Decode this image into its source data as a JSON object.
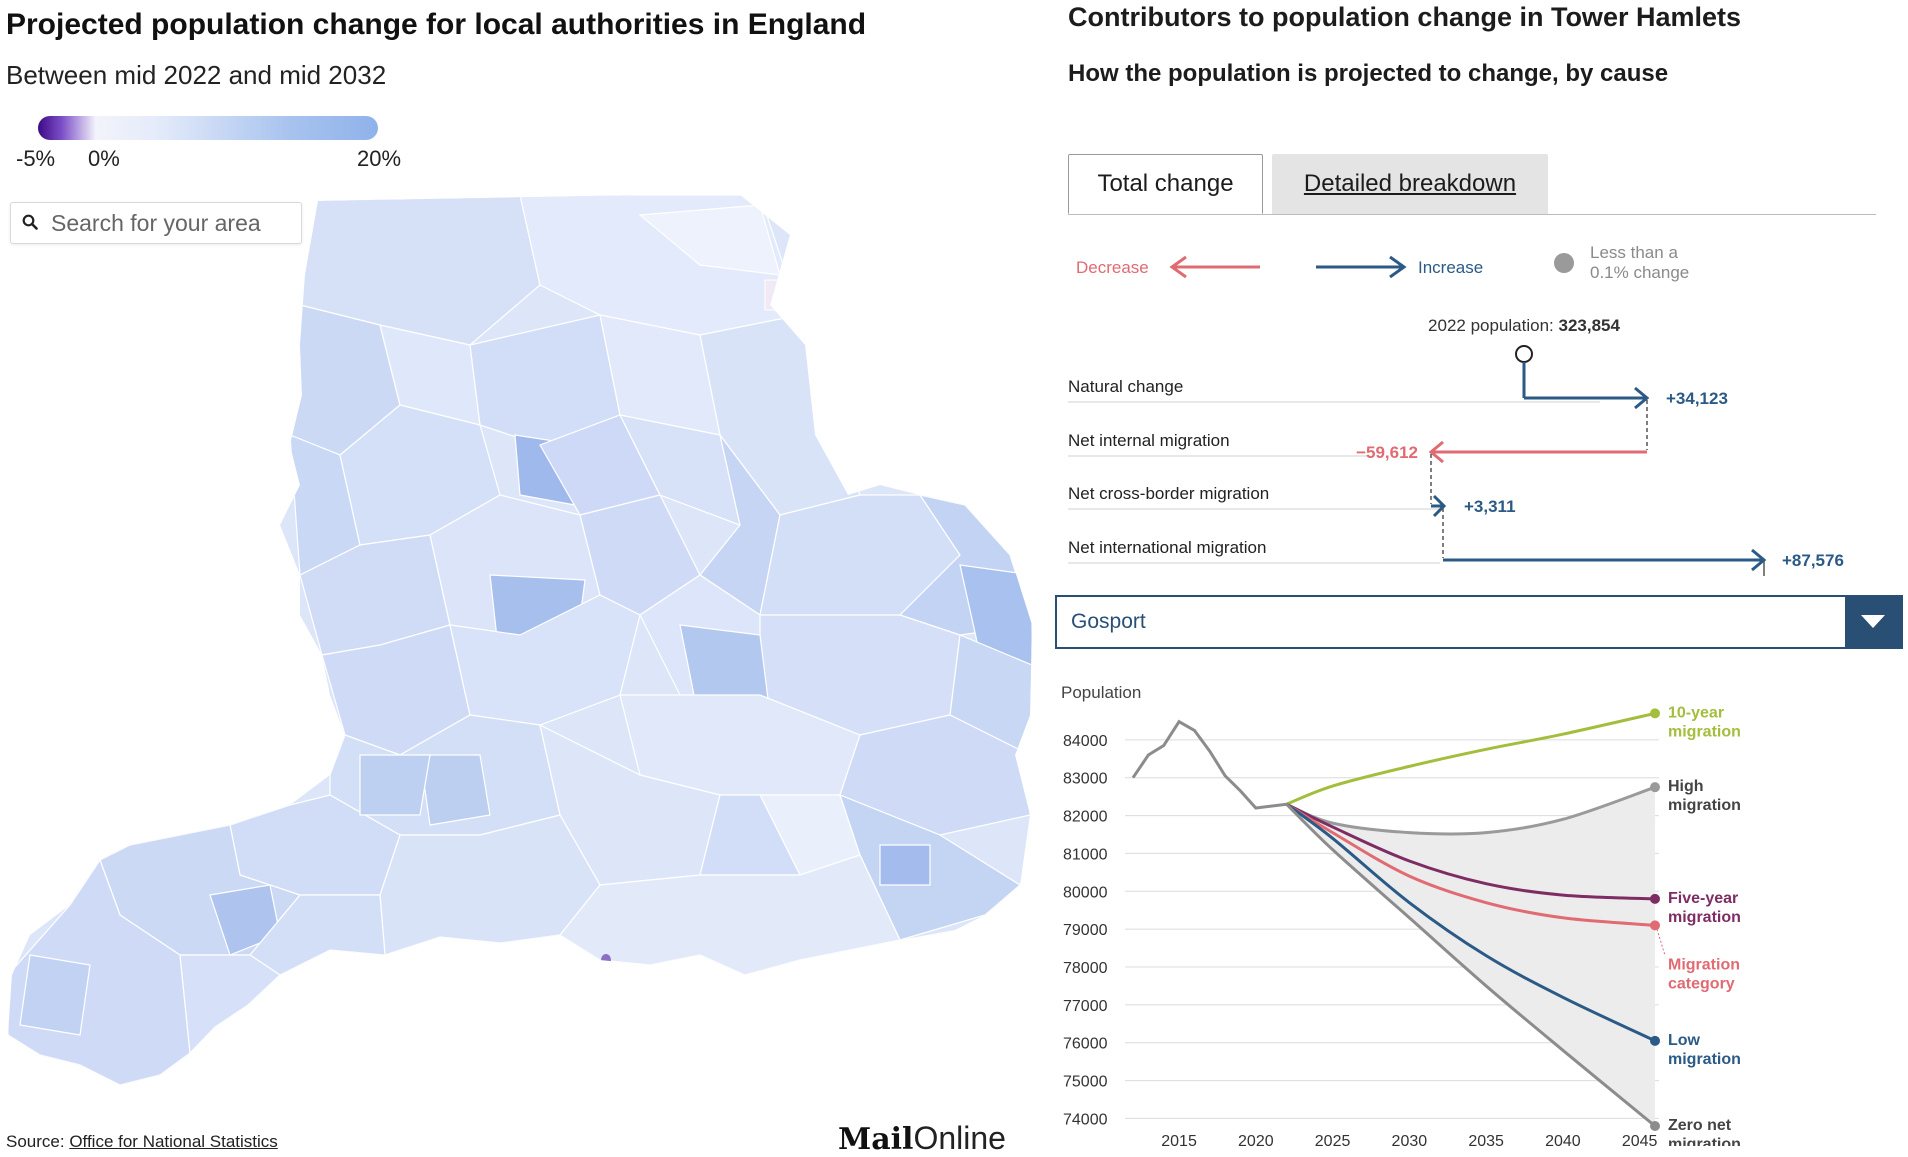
{
  "map_panel": {
    "title": "Projected population change for local authorities in England",
    "subtitle": "Between mid 2022 and mid 2032",
    "legend": {
      "min_label": "-5%",
      "zero_label": "0%",
      "max_label": "20%",
      "colors": {
        "min": "#3d0a86",
        "zero": "#f3f3fb",
        "max": "#8fb2eb"
      }
    },
    "search": {
      "placeholder": "Search for your area",
      "value": "",
      "icon": "search-icon"
    },
    "source": {
      "prefix": "Source: ",
      "link_text": "Office for National Statistics"
    },
    "logo": {
      "part1": "Mail",
      "part2": "Online"
    },
    "map_fill_colors": [
      "#dfe8fa",
      "#d2def7",
      "#c6d6f4",
      "#e8eefb",
      "#b7cbf0",
      "#a4bdec",
      "#eef2fc"
    ]
  },
  "contrib_panel": {
    "title": "Contributors to population change in Tower Hamlets",
    "subtitle": "How the population is projected to change, by cause",
    "tabs": [
      {
        "label": "Total change",
        "active": true
      },
      {
        "label": "Detailed breakdown",
        "active": false
      }
    ],
    "legend": {
      "decrease": "Decrease",
      "increase": "Increase",
      "small_line1": "Less than a",
      "small_line2": "0.1% change",
      "colors": {
        "decrease": "#e06b73",
        "increase": "#2a5a85",
        "small": "#9a9a9a"
      }
    },
    "base": {
      "label": "2022 population: ",
      "value": "323,854"
    },
    "components": [
      {
        "name": "Natural change",
        "label": "+34,123",
        "value": 34123
      },
      {
        "name": "Net internal migration",
        "label": "−59,612",
        "value": -59612
      },
      {
        "name": "Net cross-border migration",
        "label": "+3,311",
        "value": 3311
      },
      {
        "name": "Net international migration",
        "label": "+87,576",
        "value": 87576
      }
    ]
  },
  "dropdown": {
    "selected": "Gosport",
    "icon": "chevron-down-icon"
  },
  "chart_data": {
    "type": "line",
    "ylabel": "Population",
    "ylim": [
      73800,
      85000
    ],
    "xlim": [
      2012,
      2046
    ],
    "yticks": [
      74000,
      75000,
      76000,
      77000,
      78000,
      79000,
      80000,
      81000,
      82000,
      83000,
      84000
    ],
    "xticks": [
      2015,
      2020,
      2025,
      2030,
      2035,
      2040,
      2045
    ],
    "historical": {
      "x": [
        2012,
        2013,
        2014,
        2015,
        2016,
        2017,
        2018,
        2019,
        2020,
        2021,
        2022
      ],
      "values": [
        83000,
        83600,
        83850,
        84480,
        84250,
        83700,
        83050,
        82650,
        82200,
        82250,
        82300
      ]
    },
    "series": [
      {
        "name": "10-year migration",
        "label_line1": "10-year",
        "label_line2": "migration",
        "color": "#a3be3c",
        "x": [
          2022,
          2025,
          2030,
          2035,
          2040,
          2046
        ],
        "values": [
          82300,
          82780,
          83300,
          83750,
          84150,
          84700
        ]
      },
      {
        "name": "High migration",
        "label_line1": "High",
        "label_line2": "migration",
        "color": "#9a9a9a",
        "x": [
          2022,
          2025,
          2030,
          2035,
          2040,
          2046
        ],
        "values": [
          82300,
          81800,
          81550,
          81550,
          81900,
          82750
        ]
      },
      {
        "name": "Five-year migration",
        "label_line1": "Five-year",
        "label_line2": "migration",
        "color": "#7e2d64",
        "x": [
          2022,
          2025,
          2030,
          2035,
          2040,
          2046
        ],
        "values": [
          82300,
          81700,
          80800,
          80200,
          79900,
          79800
        ]
      },
      {
        "name": "Migration category",
        "label_line1": "Migration",
        "label_line2": "category",
        "color": "#e06b73",
        "x": [
          2022,
          2025,
          2030,
          2035,
          2040,
          2046
        ],
        "values": [
          82300,
          81550,
          80400,
          79700,
          79300,
          79100
        ]
      },
      {
        "name": "Low migration",
        "label_line1": "Low",
        "label_line2": "migration",
        "color": "#2a5a85",
        "x": [
          2022,
          2025,
          2030,
          2035,
          2040,
          2046
        ],
        "values": [
          82300,
          81400,
          79700,
          78300,
          77200,
          76050
        ]
      },
      {
        "name": "Zero net migration",
        "label_line1": "Zero net",
        "label_line2": "migration",
        "color": "#8c8c8c",
        "x": [
          2022,
          2025,
          2030,
          2035,
          2040,
          2046
        ],
        "values": [
          82300,
          81100,
          79300,
          77500,
          75800,
          73800
        ]
      }
    ]
  }
}
